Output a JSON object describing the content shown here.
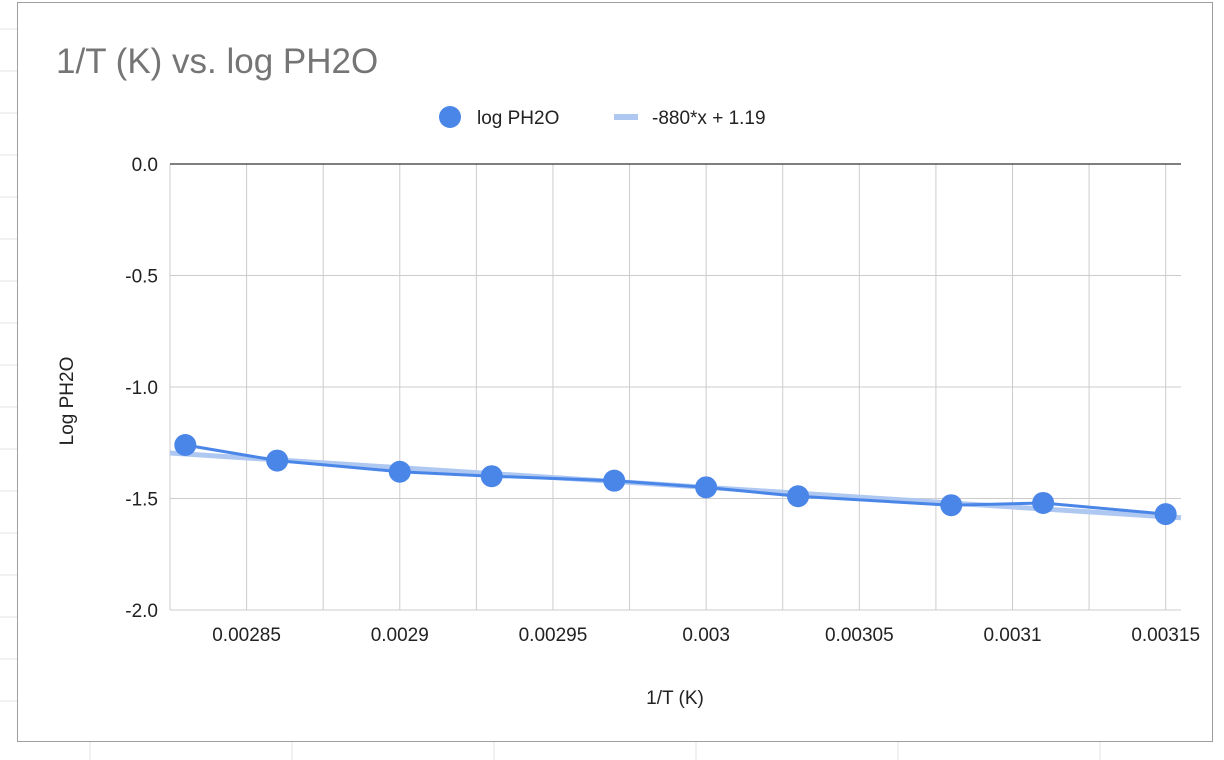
{
  "chart_data": {
    "type": "scatter",
    "title": "1/T (K) vs. log PH2O",
    "xlabel": "1/T (K)",
    "ylabel": "Log PH2O",
    "xlim": [
      0.002825,
      0.003155
    ],
    "ylim": [
      -2.0,
      0.0
    ],
    "x_ticks": [
      0.00285,
      0.0029,
      0.00295,
      0.003,
      0.00305,
      0.0031,
      0.00315
    ],
    "x_tick_labels": [
      "0.00285",
      "0.0029",
      "0.00295",
      "0.003",
      "0.00305",
      "0.0031",
      "0.00315"
    ],
    "y_ticks": [
      0.0,
      -0.5,
      -1.0,
      -1.5,
      -2.0
    ],
    "y_tick_labels": [
      "0.0",
      "-0.5",
      "-1.0",
      "-1.5",
      "-2.0"
    ],
    "grid": true,
    "legend_position": "top",
    "series": [
      {
        "name": "log PH2O",
        "color": "#4a86e8",
        "connected": true,
        "x": [
          0.00283,
          0.00286,
          0.0029,
          0.00293,
          0.00297,
          0.003,
          0.00303,
          0.00308,
          0.00311,
          0.00315
        ],
        "y": [
          -1.26,
          -1.33,
          -1.38,
          -1.4,
          -1.42,
          -1.45,
          -1.49,
          -1.53,
          -1.52,
          -1.57
        ]
      }
    ],
    "trendline": {
      "label": "-880*x + 1.19",
      "slope": -880,
      "intercept": 1.19,
      "color": "#aec8f2"
    }
  }
}
